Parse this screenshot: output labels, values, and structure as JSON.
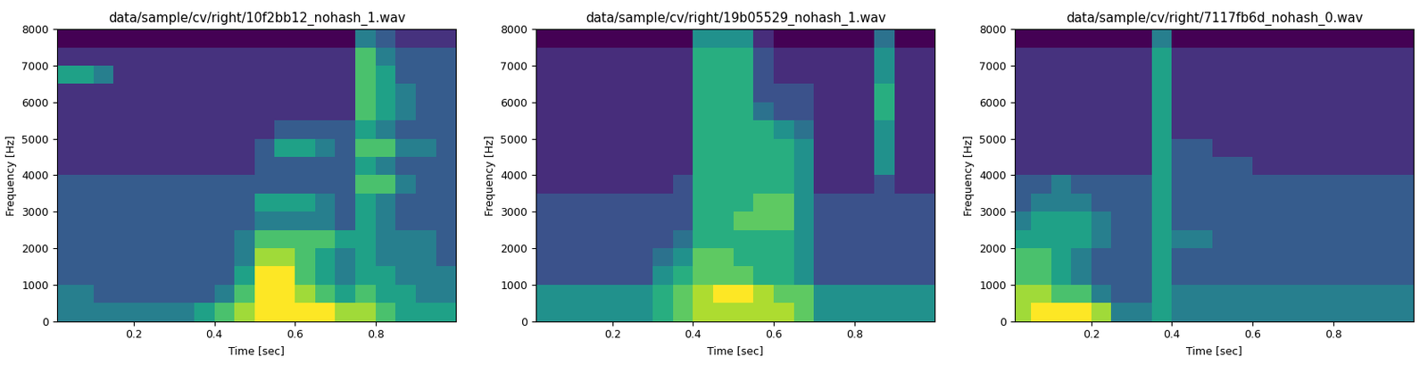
{
  "chart_data": [
    {
      "type": "spectrogram",
      "title": "data/sample/cv/right/10f2bb12_nohash_1.wav",
      "x_label": "Time [sec]",
      "y_label": "Frequency [Hz]",
      "xlim": [
        0.01,
        1.0
      ],
      "ylim": [
        0,
        8000
      ],
      "xticks": [
        0.2,
        0.4,
        0.6,
        0.8
      ],
      "yticks": [
        0,
        1000,
        2000,
        3000,
        4000,
        5000,
        6000,
        7000,
        8000
      ],
      "time_bins": [
        0.0,
        0.05,
        0.1,
        0.15,
        0.2,
        0.25,
        0.3,
        0.35,
        0.4,
        0.45,
        0.5,
        0.55,
        0.6,
        0.65,
        0.7,
        0.75,
        0.8,
        0.85,
        0.9,
        0.95,
        1.0
      ],
      "freq_bins": [
        0,
        500,
        1000,
        1500,
        2000,
        2500,
        3000,
        3500,
        4000,
        4500,
        5000,
        5500,
        6000,
        6500,
        7000,
        7500,
        8000
      ],
      "cells": [
        [
          4,
          4,
          4,
          4,
          4,
          4,
          4,
          5,
          6,
          7,
          8,
          8,
          8,
          8,
          7,
          7,
          6,
          5,
          5,
          5
        ],
        [
          4,
          4,
          3,
          3,
          3,
          3,
          3,
          3,
          4,
          6,
          8,
          8,
          7,
          6,
          5,
          6,
          5,
          5,
          4,
          4
        ],
        [
          3,
          3,
          3,
          3,
          3,
          3,
          3,
          3,
          3,
          5,
          8,
          8,
          6,
          5,
          4,
          5,
          5,
          4,
          4,
          4
        ],
        [
          3,
          3,
          3,
          3,
          3,
          3,
          3,
          3,
          3,
          4,
          7,
          7,
          6,
          5,
          4,
          5,
          4,
          4,
          4,
          3
        ],
        [
          3,
          3,
          3,
          3,
          3,
          3,
          3,
          3,
          3,
          4,
          6,
          6,
          6,
          6,
          5,
          5,
          4,
          4,
          4,
          3
        ],
        [
          3,
          3,
          3,
          3,
          3,
          3,
          3,
          3,
          3,
          3,
          4,
          4,
          4,
          4,
          3,
          5,
          4,
          3,
          3,
          3
        ],
        [
          3,
          3,
          3,
          3,
          3,
          3,
          3,
          3,
          3,
          3,
          5,
          5,
          5,
          4,
          3,
          5,
          4,
          3,
          3,
          3
        ],
        [
          3,
          3,
          3,
          3,
          3,
          3,
          3,
          3,
          3,
          3,
          3,
          3,
          3,
          3,
          3,
          6,
          6,
          4,
          3,
          3
        ],
        [
          2,
          2,
          2,
          2,
          2,
          2,
          2,
          2,
          2,
          2,
          3,
          3,
          3,
          3,
          3,
          5,
          4,
          3,
          3,
          3
        ],
        [
          2,
          2,
          2,
          2,
          2,
          2,
          2,
          2,
          2,
          2,
          3,
          5,
          5,
          4,
          3,
          6,
          6,
          4,
          4,
          3
        ],
        [
          2,
          2,
          2,
          2,
          2,
          2,
          2,
          2,
          2,
          2,
          2,
          3,
          3,
          3,
          3,
          5,
          4,
          3,
          3,
          3
        ],
        [
          2,
          2,
          2,
          2,
          2,
          2,
          2,
          2,
          2,
          2,
          2,
          2,
          2,
          2,
          2,
          6,
          5,
          4,
          3,
          3
        ],
        [
          2,
          2,
          2,
          2,
          2,
          2,
          2,
          2,
          2,
          2,
          2,
          2,
          2,
          2,
          2,
          6,
          5,
          4,
          3,
          3
        ],
        [
          5,
          5,
          4,
          2,
          2,
          2,
          2,
          2,
          2,
          2,
          2,
          2,
          2,
          2,
          2,
          6,
          5,
          3,
          3,
          3
        ],
        [
          2,
          2,
          2,
          2,
          2,
          2,
          2,
          2,
          2,
          2,
          2,
          2,
          2,
          2,
          2,
          6,
          4,
          3,
          3,
          3
        ],
        [
          1,
          1,
          1,
          1,
          1,
          1,
          1,
          1,
          1,
          1,
          1,
          1,
          1,
          1,
          1,
          4,
          3,
          2,
          2,
          2
        ]
      ]
    },
    {
      "type": "spectrogram",
      "title": "data/sample/cv/right/19b05529_nohash_1.wav",
      "x_label": "Time [sec]",
      "y_label": "Frequency [Hz]",
      "xlim": [
        0.01,
        1.0
      ],
      "ylim": [
        0,
        8000
      ],
      "xticks": [
        0.2,
        0.4,
        0.6,
        0.8
      ],
      "yticks": [
        0,
        1000,
        2000,
        3000,
        4000,
        5000,
        6000,
        7000,
        8000
      ],
      "time_bins": [
        0.0,
        0.05,
        0.1,
        0.15,
        0.2,
        0.25,
        0.3,
        0.35,
        0.4,
        0.45,
        0.5,
        0.55,
        0.6,
        0.65,
        0.7,
        0.75,
        0.8,
        0.85,
        0.9,
        0.95,
        1.0
      ],
      "freq_bins": [
        0,
        500,
        1000,
        1500,
        2000,
        2500,
        3000,
        3500,
        4000,
        4500,
        5000,
        5500,
        6000,
        6500,
        7000,
        7500,
        8000
      ],
      "cells": [
        [
          5,
          5,
          5,
          5,
          5,
          5,
          6,
          7,
          8,
          8,
          8,
          8,
          8,
          7,
          5,
          5,
          5,
          5,
          5,
          5
        ],
        [
          5,
          5,
          5,
          5,
          5,
          5,
          6,
          7,
          8,
          9,
          9,
          8,
          7,
          7,
          5,
          5,
          5,
          5,
          5,
          5
        ],
        [
          3,
          3,
          3,
          3,
          3,
          3,
          5,
          6,
          7,
          7,
          7,
          6,
          6,
          5,
          3,
          3,
          3,
          3,
          3,
          3
        ],
        [
          3,
          3,
          3,
          3,
          3,
          3,
          4,
          5,
          7,
          7,
          6,
          6,
          6,
          5,
          3,
          3,
          3,
          3,
          3,
          3
        ],
        [
          3,
          3,
          3,
          3,
          3,
          3,
          3,
          4,
          6,
          6,
          6,
          6,
          6,
          5,
          3,
          3,
          3,
          3,
          3,
          3
        ],
        [
          3,
          3,
          3,
          3,
          3,
          3,
          3,
          3,
          6,
          6,
          7,
          7,
          7,
          5,
          3,
          3,
          3,
          3,
          3,
          3
        ],
        [
          3,
          3,
          3,
          3,
          3,
          3,
          3,
          3,
          6,
          6,
          6,
          7,
          7,
          5,
          3,
          3,
          3,
          3,
          3,
          3
        ],
        [
          2,
          2,
          2,
          2,
          2,
          2,
          2,
          3,
          6,
          6,
          6,
          6,
          6,
          5,
          2,
          2,
          2,
          3,
          2,
          2
        ],
        [
          2,
          2,
          2,
          2,
          2,
          2,
          2,
          2,
          6,
          6,
          6,
          6,
          6,
          5,
          2,
          2,
          2,
          5,
          2,
          2
        ],
        [
          2,
          2,
          2,
          2,
          2,
          2,
          2,
          2,
          6,
          6,
          6,
          6,
          6,
          5,
          2,
          2,
          2,
          5,
          2,
          2
        ],
        [
          2,
          2,
          2,
          2,
          2,
          2,
          2,
          2,
          6,
          6,
          6,
          6,
          5,
          4,
          2,
          2,
          2,
          5,
          2,
          2
        ],
        [
          2,
          2,
          2,
          2,
          2,
          2,
          2,
          2,
          6,
          6,
          6,
          4,
          3,
          3,
          2,
          2,
          2,
          6,
          2,
          2
        ],
        [
          2,
          2,
          2,
          2,
          2,
          2,
          2,
          2,
          6,
          6,
          6,
          3,
          3,
          3,
          2,
          2,
          2,
          6,
          2,
          2
        ],
        [
          2,
          2,
          2,
          2,
          2,
          2,
          2,
          2,
          6,
          6,
          6,
          3,
          2,
          2,
          2,
          2,
          2,
          5,
          2,
          2
        ],
        [
          2,
          2,
          2,
          2,
          2,
          2,
          2,
          2,
          6,
          6,
          6,
          3,
          2,
          2,
          2,
          2,
          2,
          5,
          2,
          2
        ],
        [
          1,
          1,
          1,
          1,
          1,
          1,
          1,
          1,
          5,
          5,
          5,
          2,
          1,
          1,
          1,
          1,
          1,
          4,
          1,
          1
        ]
      ]
    },
    {
      "type": "spectrogram",
      "title": "data/sample/cv/right/7117fb6d_nohash_0.wav",
      "x_label": "Time [sec]",
      "y_label": "Frequency [Hz]",
      "xlim": [
        0.01,
        1.0
      ],
      "ylim": [
        0,
        8000
      ],
      "xticks": [
        0.2,
        0.4,
        0.6,
        0.8
      ],
      "yticks": [
        0,
        1000,
        2000,
        3000,
        4000,
        5000,
        6000,
        7000,
        8000
      ],
      "time_bins": [
        0.0,
        0.05,
        0.1,
        0.15,
        0.2,
        0.25,
        0.3,
        0.35,
        0.4,
        0.45,
        0.5,
        0.55,
        0.6,
        0.65,
        0.7,
        0.75,
        0.8,
        0.85,
        0.9,
        0.95,
        1.0
      ],
      "freq_bins": [
        0,
        500,
        1000,
        1500,
        2000,
        2500,
        3000,
        3500,
        4000,
        4500,
        5000,
        5500,
        6000,
        6500,
        7000,
        7500,
        8000
      ],
      "cells": [
        [
          7,
          8,
          8,
          8,
          7,
          4,
          4,
          5,
          4,
          4,
          4,
          4,
          4,
          4,
          4,
          4,
          4,
          4,
          4,
          4
        ],
        [
          7,
          7,
          6,
          6,
          4,
          3,
          3,
          5,
          4,
          4,
          4,
          4,
          4,
          4,
          4,
          4,
          4,
          4,
          4,
          4
        ],
        [
          6,
          6,
          5,
          4,
          3,
          3,
          3,
          5,
          3,
          3,
          3,
          3,
          3,
          3,
          3,
          3,
          3,
          3,
          3,
          3
        ],
        [
          6,
          6,
          5,
          4,
          3,
          3,
          3,
          5,
          3,
          3,
          3,
          3,
          3,
          3,
          3,
          3,
          3,
          3,
          3,
          3
        ],
        [
          5,
          5,
          5,
          5,
          4,
          3,
          3,
          5,
          4,
          4,
          3,
          3,
          3,
          3,
          3,
          3,
          3,
          3,
          3,
          3
        ],
        [
          4,
          5,
          5,
          5,
          4,
          3,
          3,
          5,
          3,
          3,
          3,
          3,
          3,
          3,
          3,
          3,
          3,
          3,
          3,
          3
        ],
        [
          3,
          4,
          4,
          4,
          3,
          3,
          3,
          5,
          3,
          3,
          3,
          3,
          3,
          3,
          3,
          3,
          3,
          3,
          3,
          3
        ],
        [
          3,
          3,
          4,
          3,
          3,
          3,
          3,
          5,
          3,
          3,
          3,
          3,
          3,
          3,
          3,
          3,
          3,
          3,
          3,
          3
        ],
        [
          2,
          2,
          2,
          2,
          2,
          2,
          2,
          5,
          3,
          3,
          3,
          3,
          2,
          2,
          2,
          2,
          2,
          2,
          2,
          2
        ],
        [
          2,
          2,
          2,
          2,
          2,
          2,
          2,
          5,
          3,
          3,
          2,
          2,
          2,
          2,
          2,
          2,
          2,
          2,
          2,
          2
        ],
        [
          2,
          2,
          2,
          2,
          2,
          2,
          2,
          5,
          2,
          2,
          2,
          2,
          2,
          2,
          2,
          2,
          2,
          2,
          2,
          2
        ],
        [
          2,
          2,
          2,
          2,
          2,
          2,
          2,
          5,
          2,
          2,
          2,
          2,
          2,
          2,
          2,
          2,
          2,
          2,
          2,
          2
        ],
        [
          2,
          2,
          2,
          2,
          2,
          2,
          2,
          5,
          2,
          2,
          2,
          2,
          2,
          2,
          2,
          2,
          2,
          2,
          2,
          2
        ],
        [
          2,
          2,
          2,
          2,
          2,
          2,
          2,
          5,
          2,
          2,
          2,
          2,
          2,
          2,
          2,
          2,
          2,
          2,
          2,
          2
        ],
        [
          2,
          2,
          2,
          2,
          2,
          2,
          2,
          5,
          2,
          2,
          2,
          2,
          2,
          2,
          2,
          2,
          2,
          2,
          2,
          2
        ],
        [
          1,
          1,
          1,
          1,
          1,
          1,
          1,
          4,
          1,
          1,
          1,
          1,
          1,
          1,
          1,
          1,
          1,
          1,
          1,
          1
        ]
      ]
    }
  ]
}
